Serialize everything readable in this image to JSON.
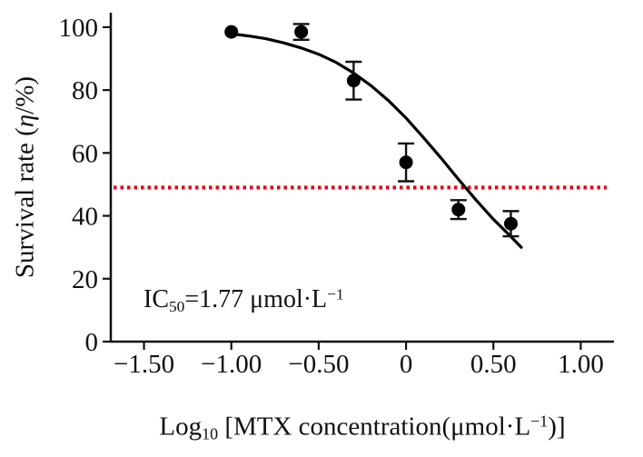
{
  "chart_data": {
    "type": "scatter",
    "title": "",
    "xlabel": "Log10 [MTX concentration(μmol·L−1)]",
    "xlabel_parts": {
      "p1": "Log",
      "sub1": "10",
      "p2": " [MTX concentration(μmol·L",
      "sup1": "−1",
      "p3": ")]"
    },
    "ylabel": "Survival rate (η/%)",
    "ylabel_parts": {
      "p1": "Survival rate (",
      "eta": "η",
      "p2": "/%)"
    },
    "annotation": "IC50=1.77 μmol·L−1",
    "annotation_parts": {
      "p1": "IC",
      "sub1": "50",
      "p2": "=1.77 μmol·L",
      "sup1": "−1"
    },
    "xlim": [
      -1.5,
      1.0
    ],
    "ylim": [
      0,
      100
    ],
    "x_ticks": [
      -1.5,
      -1.0,
      -0.5,
      0,
      0.5,
      1.0
    ],
    "x_tick_labels": [
      "−1.50",
      "−1.00",
      "−0.50",
      "0",
      "0.50",
      "1.00"
    ],
    "y_ticks": [
      0,
      20,
      40,
      60,
      80,
      100
    ],
    "y_tick_labels": [
      "0",
      "20",
      "40",
      "60",
      "80",
      "100"
    ],
    "grid": false,
    "legend_position": "none",
    "marker": {
      "shape": "circle",
      "color": "#000000"
    },
    "points": [
      {
        "x": -1.0,
        "y": 98.5,
        "err": 0
      },
      {
        "x": -0.6,
        "y": 98.5,
        "err": 2.5
      },
      {
        "x": -0.3,
        "y": 83,
        "err": 6
      },
      {
        "x": 0.0,
        "y": 57,
        "err": 6
      },
      {
        "x": 0.3,
        "y": 42,
        "err": 3
      },
      {
        "x": 0.6,
        "y": 37.5,
        "err": 4
      }
    ],
    "fit_curve": {
      "color": "#000000",
      "points": [
        [
          -1.03,
          98.1
        ],
        [
          -0.9,
          97.2
        ],
        [
          -0.8,
          96.3
        ],
        [
          -0.7,
          95.0
        ],
        [
          -0.6,
          93.4
        ],
        [
          -0.5,
          91.4
        ],
        [
          -0.4,
          88.8
        ],
        [
          -0.3,
          85.4
        ],
        [
          -0.2,
          81.4
        ],
        [
          -0.1,
          76.6
        ],
        [
          0.0,
          71.1
        ],
        [
          0.1,
          64.9
        ],
        [
          0.2,
          58.4
        ],
        [
          0.3,
          51.6
        ],
        [
          0.4,
          45.1
        ],
        [
          0.5,
          38.9
        ],
        [
          0.6,
          33.4
        ],
        [
          0.66,
          30.0
        ]
      ]
    },
    "reference_line": {
      "y": 49,
      "color": "#e60012",
      "style": "dotted"
    }
  }
}
